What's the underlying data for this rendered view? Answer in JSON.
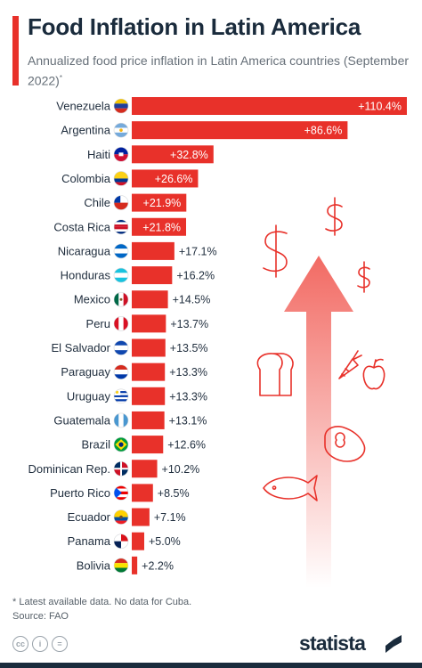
{
  "title": "Food Inflation in Latin America",
  "subtitle": "Annualized food price inflation in Latin America countries (September 2022)",
  "subtitle_mark": "*",
  "footnote": "* Latest available data. No data for Cuba.",
  "source": "Source: FAO",
  "brand": "statista",
  "license_icons": [
    "cc",
    "i",
    "="
  ],
  "colors": {
    "bar": "#e8312a",
    "text": "#1f2d3d",
    "accent": "#e8312a",
    "icon_stroke": "#e8312a"
  },
  "decor_icons": [
    "dollar-sign-icon",
    "up-arrow-icon",
    "bread-icon",
    "carrot-icon",
    "apple-icon",
    "steak-icon",
    "fish-icon"
  ],
  "chart_data": {
    "type": "bar",
    "orientation": "horizontal",
    "value_format": "+{v}%",
    "categories": [
      "Venezuela",
      "Argentina",
      "Haiti",
      "Colombia",
      "Chile",
      "Costa Rica",
      "Nicaragua",
      "Honduras",
      "Mexico",
      "Peru",
      "El Salvador",
      "Paraguay",
      "Uruguay",
      "Guatemala",
      "Brazil",
      "Dominican Rep.",
      "Puerto Rico",
      "Ecuador",
      "Panama",
      "Bolivia"
    ],
    "values": [
      110.4,
      86.6,
      32.8,
      26.6,
      21.9,
      21.8,
      17.1,
      16.2,
      14.5,
      13.7,
      13.5,
      13.3,
      13.3,
      13.1,
      12.6,
      10.2,
      8.5,
      7.1,
      5.0,
      2.2
    ],
    "value_labels": [
      "+110.4%",
      "+86.6%",
      "+32.8%",
      "+26.6%",
      "+21.9%",
      "+21.8%",
      "+17.1%",
      "+16.2%",
      "+14.5%",
      "+13.7%",
      "+13.5%",
      "+13.3%",
      "+13.3%",
      "+13.1%",
      "+12.6%",
      "+10.2%",
      "+8.5%",
      "+7.1%",
      "+5.0%",
      "+2.2%"
    ],
    "flags": [
      "venezuela-flag-icon",
      "argentina-flag-icon",
      "haiti-flag-icon",
      "colombia-flag-icon",
      "chile-flag-icon",
      "costa-rica-flag-icon",
      "nicaragua-flag-icon",
      "honduras-flag-icon",
      "mexico-flag-icon",
      "peru-flag-icon",
      "el-salvador-flag-icon",
      "paraguay-flag-icon",
      "uruguay-flag-icon",
      "guatemala-flag-icon",
      "brazil-flag-icon",
      "dominican-rep-flag-icon",
      "puerto-rico-flag-icon",
      "ecuador-flag-icon",
      "panama-flag-icon",
      "bolivia-flag-icon"
    ],
    "unit": "%",
    "xlim": [
      0,
      110.4
    ],
    "grid": false,
    "legend": "none"
  }
}
